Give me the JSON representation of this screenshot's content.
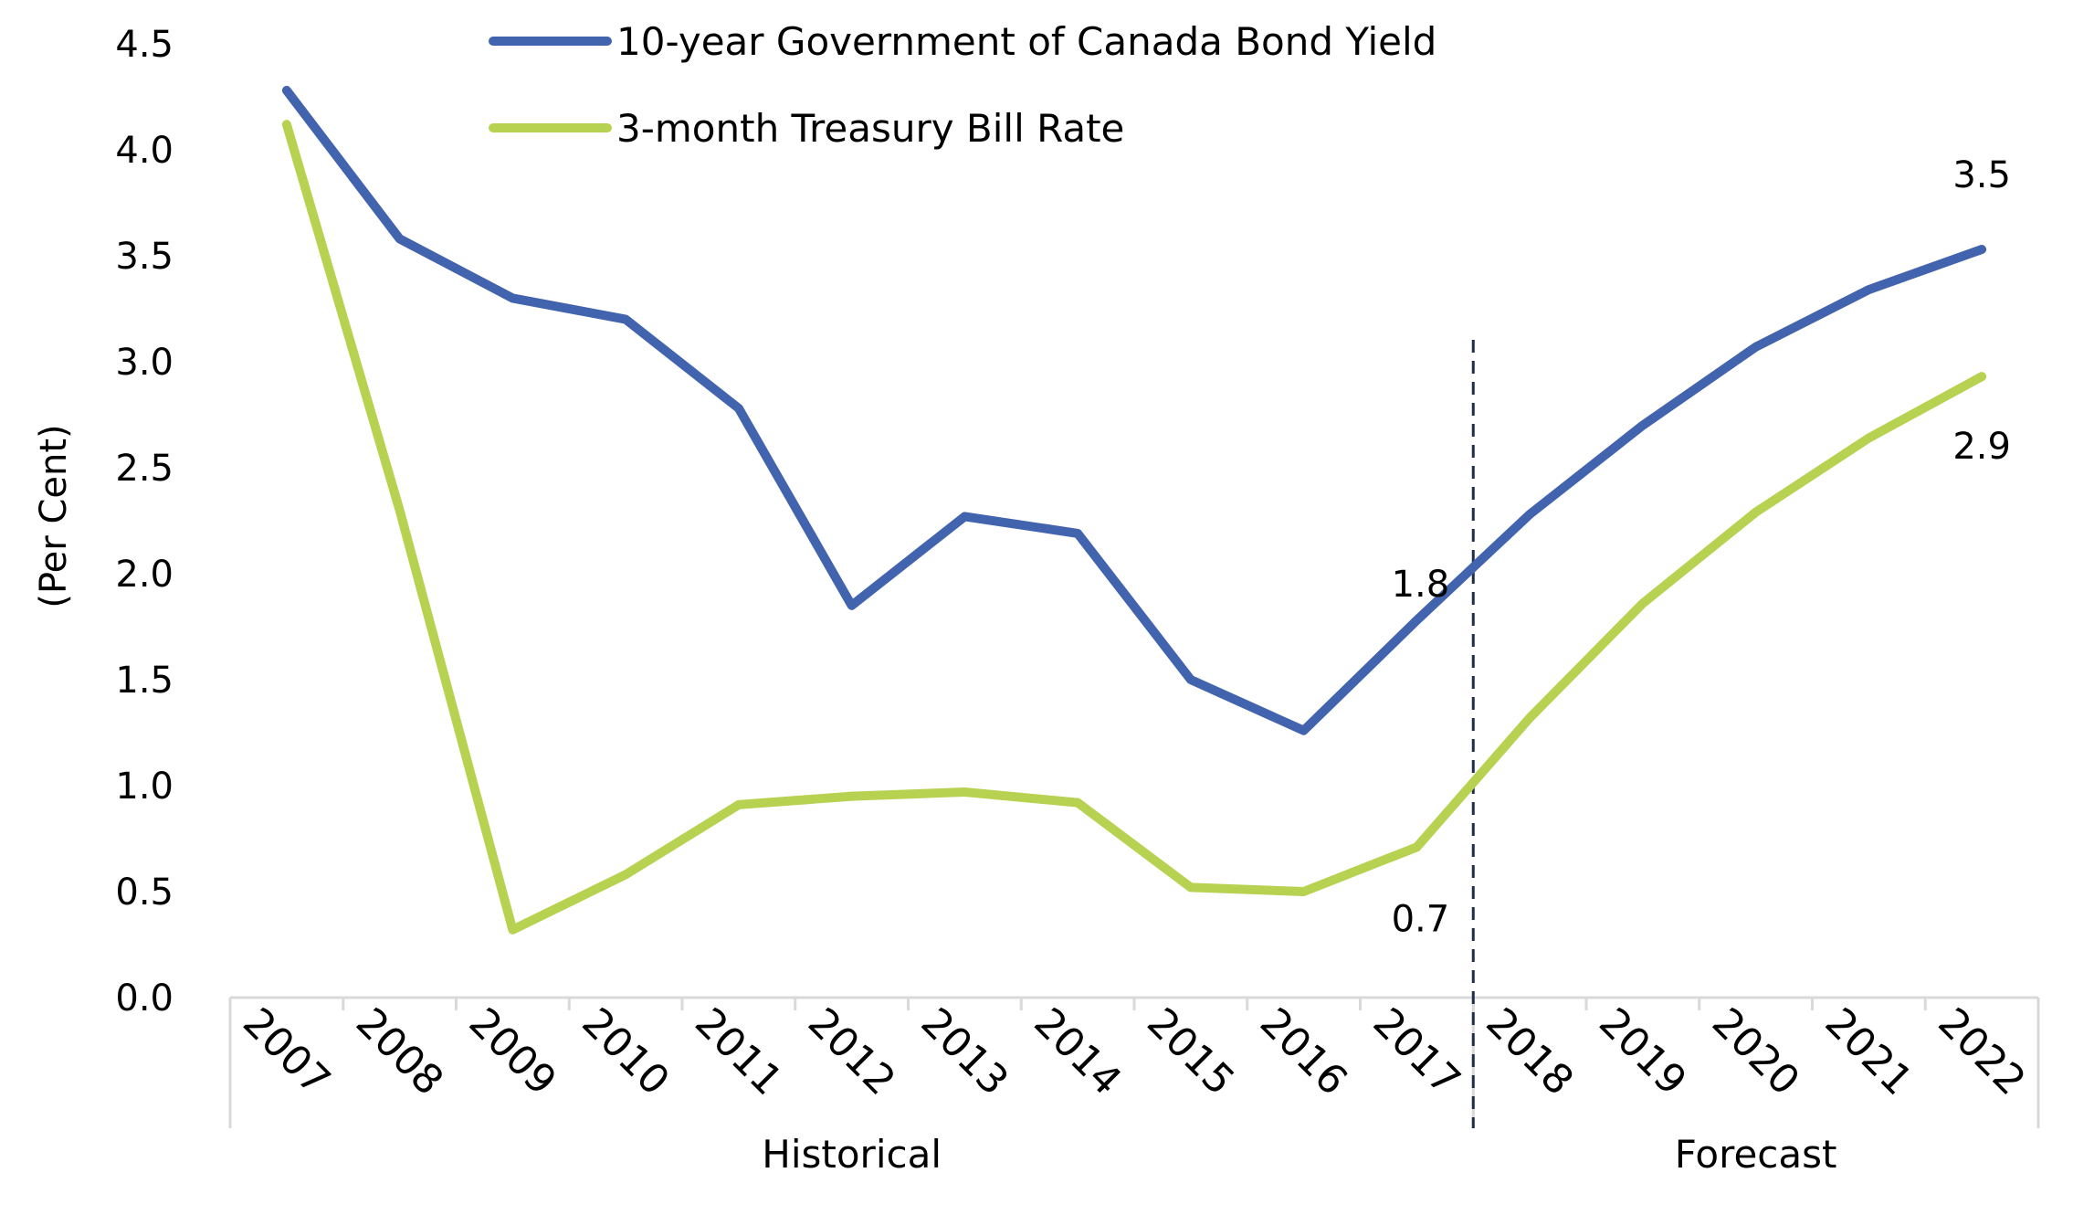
{
  "chart_data": {
    "type": "line",
    "title": "",
    "ylabel": "(Per Cent)",
    "xlabel": "",
    "ylim": [
      0,
      4.5
    ],
    "ytick_step": 0.5,
    "yticks": [
      "0.0",
      "0.5",
      "1.0",
      "1.5",
      "2.0",
      "2.5",
      "3.0",
      "3.5",
      "4.0",
      "4.5"
    ],
    "categories": [
      "2007",
      "2008",
      "2009",
      "2010",
      "2011",
      "2012",
      "2013",
      "2014",
      "2015",
      "2016",
      "2017",
      "2018",
      "2019",
      "2020",
      "2021",
      "2022"
    ],
    "series": [
      {
        "name": "10-year Government of Canada Bond Yield",
        "color": "#4263ae",
        "values": [
          4.28,
          3.58,
          3.3,
          3.2,
          2.78,
          1.85,
          2.27,
          2.19,
          1.5,
          1.26,
          1.78,
          2.28,
          2.7,
          3.07,
          3.34,
          3.53
        ]
      },
      {
        "name": "3-month Treasury Bill Rate",
        "color": "#b7d250",
        "values": [
          4.12,
          2.3,
          0.32,
          0.58,
          0.91,
          0.95,
          0.97,
          0.92,
          0.52,
          0.5,
          0.71,
          1.32,
          1.86,
          2.29,
          2.64,
          2.93
        ]
      }
    ],
    "data_labels": [
      {
        "series": 0,
        "index": 10,
        "text": "1.8"
      },
      {
        "series": 1,
        "index": 10,
        "text": "0.7"
      },
      {
        "series": 0,
        "index": 15,
        "text": "3.5"
      },
      {
        "series": 1,
        "index": 15,
        "text": "2.9"
      }
    ],
    "groups": [
      {
        "label": "Historical",
        "from": 0,
        "to": 10
      },
      {
        "label": "Forecast",
        "from": 11,
        "to": 15
      }
    ],
    "forecast_divider_after_index": 10,
    "legend": "top"
  }
}
